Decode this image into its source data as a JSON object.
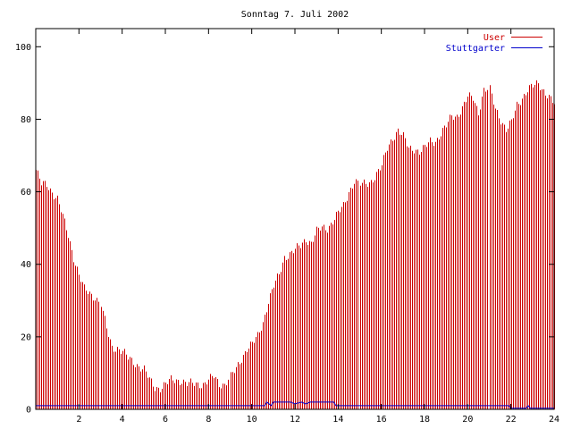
{
  "colors": {
    "user": "#cc0000",
    "stuttgarter": "#0000cc",
    "axis": "#000000",
    "background": "#ffffff"
  },
  "chart_data": {
    "type": "bar",
    "title": "Sonntag 7. Juli 2002",
    "xlabel": "",
    "ylabel": "",
    "xlim": [
      0,
      24
    ],
    "ylim": [
      0,
      105
    ],
    "grid": false,
    "legend_position": "top-right",
    "x_ticks": [
      "2",
      "4",
      "6",
      "8",
      "10",
      "12",
      "14",
      "16",
      "18",
      "20",
      "22",
      "24"
    ],
    "y_ticks": [
      "0",
      "20",
      "40",
      "60",
      "80",
      "100"
    ],
    "series": [
      {
        "name": "User",
        "style": "impulses",
        "color": "#cc0000",
        "points": [
          [
            0,
            66
          ],
          [
            0.25,
            62
          ],
          [
            0.5,
            62
          ],
          [
            0.75,
            60
          ],
          [
            1,
            58
          ],
          [
            1.25,
            53
          ],
          [
            1.5,
            48
          ],
          [
            1.75,
            42
          ],
          [
            2,
            37
          ],
          [
            2.25,
            33
          ],
          [
            2.5,
            32
          ],
          [
            2.75,
            31
          ],
          [
            3,
            29
          ],
          [
            3.25,
            22
          ],
          [
            3.5,
            17
          ],
          [
            3.75,
            17
          ],
          [
            4,
            16
          ],
          [
            4.25,
            14
          ],
          [
            4.5,
            13
          ],
          [
            4.75,
            12
          ],
          [
            5,
            11
          ],
          [
            5.25,
            8
          ],
          [
            5.5,
            6
          ],
          [
            5.75,
            6
          ],
          [
            6,
            7
          ],
          [
            6.25,
            8
          ],
          [
            6.5,
            8
          ],
          [
            6.75,
            8
          ],
          [
            7,
            7
          ],
          [
            7.25,
            7
          ],
          [
            7.5,
            7
          ],
          [
            7.75,
            7
          ],
          [
            8,
            8
          ],
          [
            8.25,
            9
          ],
          [
            8.5,
            7
          ],
          [
            8.75,
            7
          ],
          [
            9,
            9
          ],
          [
            9.25,
            11
          ],
          [
            9.5,
            14
          ],
          [
            9.75,
            17
          ],
          [
            10,
            18
          ],
          [
            10.25,
            20
          ],
          [
            10.5,
            24
          ],
          [
            10.75,
            30
          ],
          [
            11,
            34
          ],
          [
            11.25,
            37
          ],
          [
            11.5,
            42
          ],
          [
            11.75,
            43
          ],
          [
            12,
            44
          ],
          [
            12.25,
            45
          ],
          [
            12.5,
            47
          ],
          [
            12.75,
            46
          ],
          [
            13,
            49
          ],
          [
            13.25,
            50
          ],
          [
            13.5,
            50
          ],
          [
            13.75,
            52
          ],
          [
            14,
            54
          ],
          [
            14.25,
            56
          ],
          [
            14.5,
            60
          ],
          [
            14.75,
            63
          ],
          [
            15,
            62
          ],
          [
            15.25,
            62
          ],
          [
            15.5,
            63
          ],
          [
            15.75,
            65
          ],
          [
            16,
            67
          ],
          [
            16.25,
            72
          ],
          [
            16.5,
            75
          ],
          [
            16.75,
            77
          ],
          [
            17,
            75
          ],
          [
            17.25,
            72
          ],
          [
            17.5,
            72
          ],
          [
            17.75,
            71
          ],
          [
            18,
            72
          ],
          [
            18.25,
            74
          ],
          [
            18.5,
            74
          ],
          [
            18.75,
            76
          ],
          [
            19,
            78
          ],
          [
            19.25,
            81
          ],
          [
            19.5,
            81
          ],
          [
            19.75,
            83
          ],
          [
            20,
            86
          ],
          [
            20.25,
            86
          ],
          [
            20.5,
            82
          ],
          [
            20.75,
            88
          ],
          [
            21,
            88
          ],
          [
            21.25,
            83
          ],
          [
            21.5,
            80
          ],
          [
            21.75,
            77
          ],
          [
            22,
            79
          ],
          [
            22.25,
            84
          ],
          [
            22.5,
            86
          ],
          [
            22.75,
            88
          ],
          [
            23,
            89
          ],
          [
            23.25,
            90
          ],
          [
            23.5,
            88
          ],
          [
            23.75,
            86
          ],
          [
            24,
            84
          ]
        ]
      },
      {
        "name": "Stuttgarter",
        "style": "lines",
        "color": "#0000cc",
        "points": [
          [
            0,
            1
          ],
          [
            10.6,
            1
          ],
          [
            10.7,
            2
          ],
          [
            10.9,
            1
          ],
          [
            11.0,
            2
          ],
          [
            11.8,
            2
          ],
          [
            12.0,
            1.5
          ],
          [
            12.3,
            2
          ],
          [
            12.5,
            1.5
          ],
          [
            12.7,
            2
          ],
          [
            13.8,
            2
          ],
          [
            13.9,
            1
          ],
          [
            21.9,
            1
          ],
          [
            22.0,
            0.3
          ],
          [
            22.7,
            0.3
          ],
          [
            22.8,
            1
          ],
          [
            22.9,
            0.3
          ],
          [
            24,
            0.3
          ]
        ]
      }
    ]
  }
}
